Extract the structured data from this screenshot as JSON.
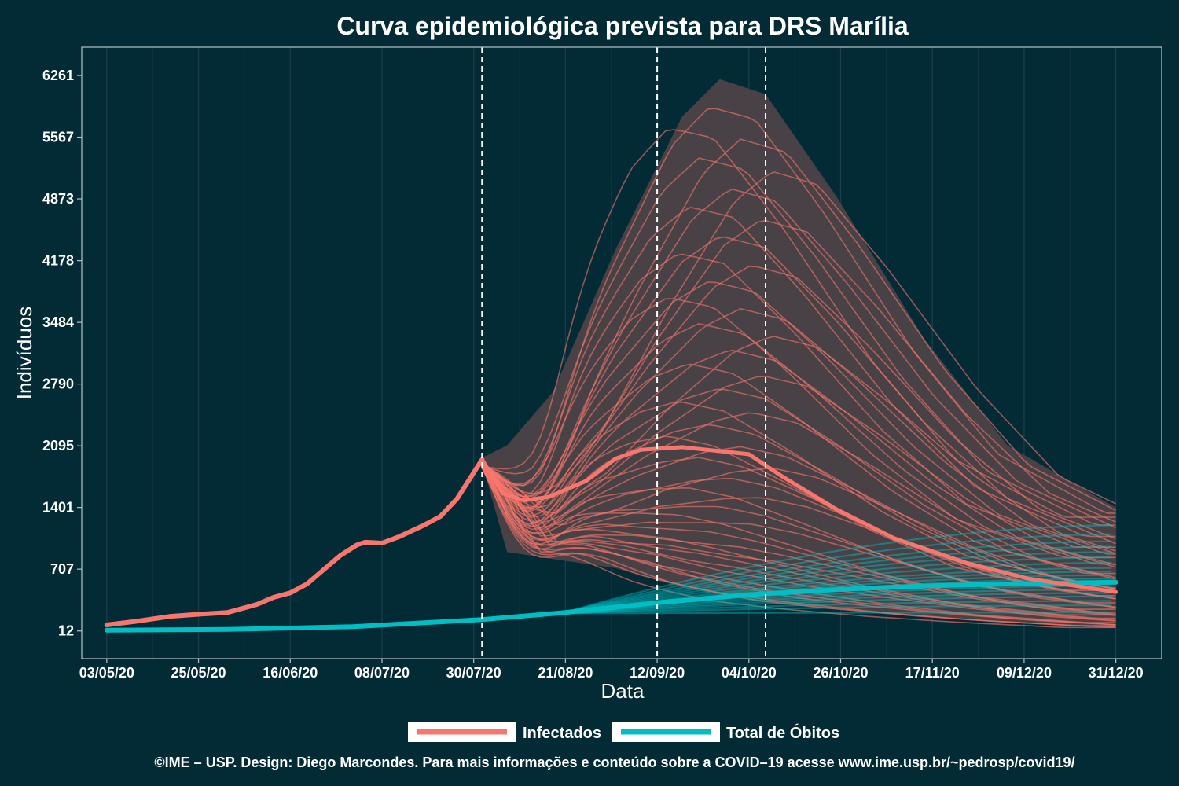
{
  "chart_data": {
    "type": "line",
    "title": "Curva epidemiológica prevista para DRS Marília",
    "xlabel": "Data",
    "ylabel": "Indivíduos",
    "x_ticks": [
      "03/05/20",
      "25/05/20",
      "16/06/20",
      "08/07/20",
      "30/07/20",
      "21/08/20",
      "12/09/20",
      "04/10/20",
      "26/10/20",
      "17/11/20",
      "09/12/20",
      "31/12/20"
    ],
    "y_ticks": [
      "12",
      "707",
      "1401",
      "2095",
      "2790",
      "3484",
      "4178",
      "4873",
      "5567",
      "6261"
    ],
    "x_range": [
      "2020-04-27",
      "2021-01-11"
    ],
    "y_range": [
      -300,
      6580
    ],
    "vertical_markers": [
      "2020-08-01",
      "2020-09-12",
      "2020-10-08"
    ],
    "grid": "vertical-only",
    "legend_position": "bottom",
    "legend": [
      {
        "label": "Infectados",
        "color": "#f8766d"
      },
      {
        "label": "Total de Óbitos",
        "color": "#00bfc4"
      }
    ],
    "observed_infectados": [
      {
        "x": "2020-05-03",
        "y": 80
      },
      {
        "x": "2020-05-10",
        "y": 120
      },
      {
        "x": "2020-05-18",
        "y": 175
      },
      {
        "x": "2020-05-25",
        "y": 200
      },
      {
        "x": "2020-06-01",
        "y": 220
      },
      {
        "x": "2020-06-08",
        "y": 310
      },
      {
        "x": "2020-06-12",
        "y": 390
      },
      {
        "x": "2020-06-16",
        "y": 440
      },
      {
        "x": "2020-06-20",
        "y": 540
      },
      {
        "x": "2020-06-24",
        "y": 700
      },
      {
        "x": "2020-06-28",
        "y": 860
      },
      {
        "x": "2020-07-02",
        "y": 980
      },
      {
        "x": "2020-07-04",
        "y": 1010
      },
      {
        "x": "2020-07-08",
        "y": 1000
      },
      {
        "x": "2020-07-12",
        "y": 1070
      },
      {
        "x": "2020-07-18",
        "y": 1200
      },
      {
        "x": "2020-07-22",
        "y": 1300
      },
      {
        "x": "2020-07-26",
        "y": 1500
      },
      {
        "x": "2020-08-01",
        "y": 1940
      }
    ],
    "forecast_median_infectados": [
      {
        "x": "2020-08-01",
        "y": 1940
      },
      {
        "x": "2020-08-06",
        "y": 1560
      },
      {
        "x": "2020-08-11",
        "y": 1480
      },
      {
        "x": "2020-08-17",
        "y": 1520
      },
      {
        "x": "2020-08-26",
        "y": 1700
      },
      {
        "x": "2020-09-02",
        "y": 1950
      },
      {
        "x": "2020-09-08",
        "y": 2050
      },
      {
        "x": "2020-09-18",
        "y": 2080
      },
      {
        "x": "2020-10-04",
        "y": 2000
      },
      {
        "x": "2020-10-12",
        "y": 1750
      },
      {
        "x": "2020-10-25",
        "y": 1380
      },
      {
        "x": "2020-11-08",
        "y": 1050
      },
      {
        "x": "2020-11-25",
        "y": 780
      },
      {
        "x": "2020-12-10",
        "y": 600
      },
      {
        "x": "2020-12-31",
        "y": 450
      }
    ],
    "infectados_band": [
      {
        "x": "2020-08-01",
        "lower": 1900,
        "upper": 1960
      },
      {
        "x": "2020-08-07",
        "lower": 900,
        "upper": 2100
      },
      {
        "x": "2020-08-18",
        "lower": 820,
        "upper": 2700
      },
      {
        "x": "2020-09-02",
        "lower": 720,
        "upper": 4300
      },
      {
        "x": "2020-09-18",
        "lower": 500,
        "upper": 5800
      },
      {
        "x": "2020-09-27",
        "lower": 420,
        "upper": 6220
      },
      {
        "x": "2020-10-08",
        "lower": 330,
        "upper": 6050
      },
      {
        "x": "2020-10-25",
        "lower": 250,
        "upper": 4900
      },
      {
        "x": "2020-11-15",
        "lower": 170,
        "upper": 3300
      },
      {
        "x": "2020-12-05",
        "lower": 110,
        "upper": 2100
      },
      {
        "x": "2020-12-31",
        "lower": 50,
        "upper": 1400
      }
    ],
    "observed_obitos": [
      {
        "x": "2020-05-03",
        "y": 20
      },
      {
        "x": "2020-06-01",
        "y": 30
      },
      {
        "x": "2020-07-01",
        "y": 60
      },
      {
        "x": "2020-08-01",
        "y": 140
      },
      {
        "x": "2020-08-21",
        "y": 220
      },
      {
        "x": "2020-09-12",
        "y": 330
      },
      {
        "x": "2020-10-04",
        "y": 420
      },
      {
        "x": "2020-10-26",
        "y": 480
      },
      {
        "x": "2020-11-17",
        "y": 520
      },
      {
        "x": "2020-12-09",
        "y": 545
      },
      {
        "x": "2020-12-31",
        "y": 560
      }
    ],
    "obitos_scenario_finals": [
      220,
      300,
      350,
      400,
      440,
      480,
      520,
      560,
      600,
      640,
      680,
      720,
      780,
      840,
      900,
      960,
      1020,
      1100,
      1200
    ]
  },
  "caption": "©IME – USP. Design: Diego Marcondes. Para mais informações e conteúdo sobre a COVID–19 acesse www.ime.usp.br/~pedrosp/covid19/"
}
